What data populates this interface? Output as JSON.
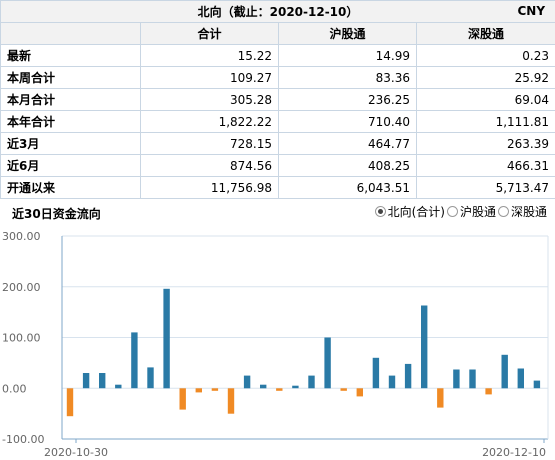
{
  "summary": {
    "title": "北向（截止：2020-12-10）",
    "currency": "CNY",
    "columns": [
      "合计",
      "沪股通",
      "深股通"
    ],
    "rows": [
      {
        "label": "最新",
        "values": [
          "15.22",
          "14.99",
          "0.23"
        ]
      },
      {
        "label": "本周合计",
        "values": [
          "109.27",
          "83.36",
          "25.92"
        ]
      },
      {
        "label": "本月合计",
        "values": [
          "305.28",
          "236.25",
          "69.04"
        ]
      },
      {
        "label": "本年合计",
        "values": [
          "1,822.22",
          "710.40",
          "1,111.81"
        ]
      },
      {
        "label": "近3月",
        "values": [
          "728.15",
          "464.77",
          "263.39"
        ]
      },
      {
        "label": "近6月",
        "values": [
          "874.56",
          "408.25",
          "466.31"
        ]
      },
      {
        "label": "开通以来",
        "values": [
          "11,756.98",
          "6,043.51",
          "5,713.47"
        ]
      }
    ]
  },
  "flow": {
    "title": "近30日资金流向",
    "options": [
      {
        "label": "北向(合计)",
        "selected": true
      },
      {
        "label": "沪股通",
        "selected": false
      },
      {
        "label": "深股通",
        "selected": false
      }
    ]
  },
  "colors": {
    "positive": "#2a7aa6",
    "negative": "#f08a24",
    "axis": "#7fa7c9",
    "grid": "#d8e3ee"
  },
  "chart_data": {
    "type": "bar",
    "y_ticks": [
      "300.00",
      "200.00",
      "100.00",
      "0.00",
      "-100.00"
    ],
    "ylim": [
      -100,
      300
    ],
    "x_tick_labels": [
      "2020-10-30",
      "2020-12-10"
    ],
    "values": [
      -55,
      30,
      30,
      7,
      110,
      41,
      196,
      -42,
      -8,
      -5,
      -50,
      25,
      7,
      -5,
      5,
      25,
      100,
      -5,
      -16,
      60,
      25,
      48,
      163,
      -38,
      37,
      37,
      -12,
      66,
      39,
      15
    ]
  }
}
